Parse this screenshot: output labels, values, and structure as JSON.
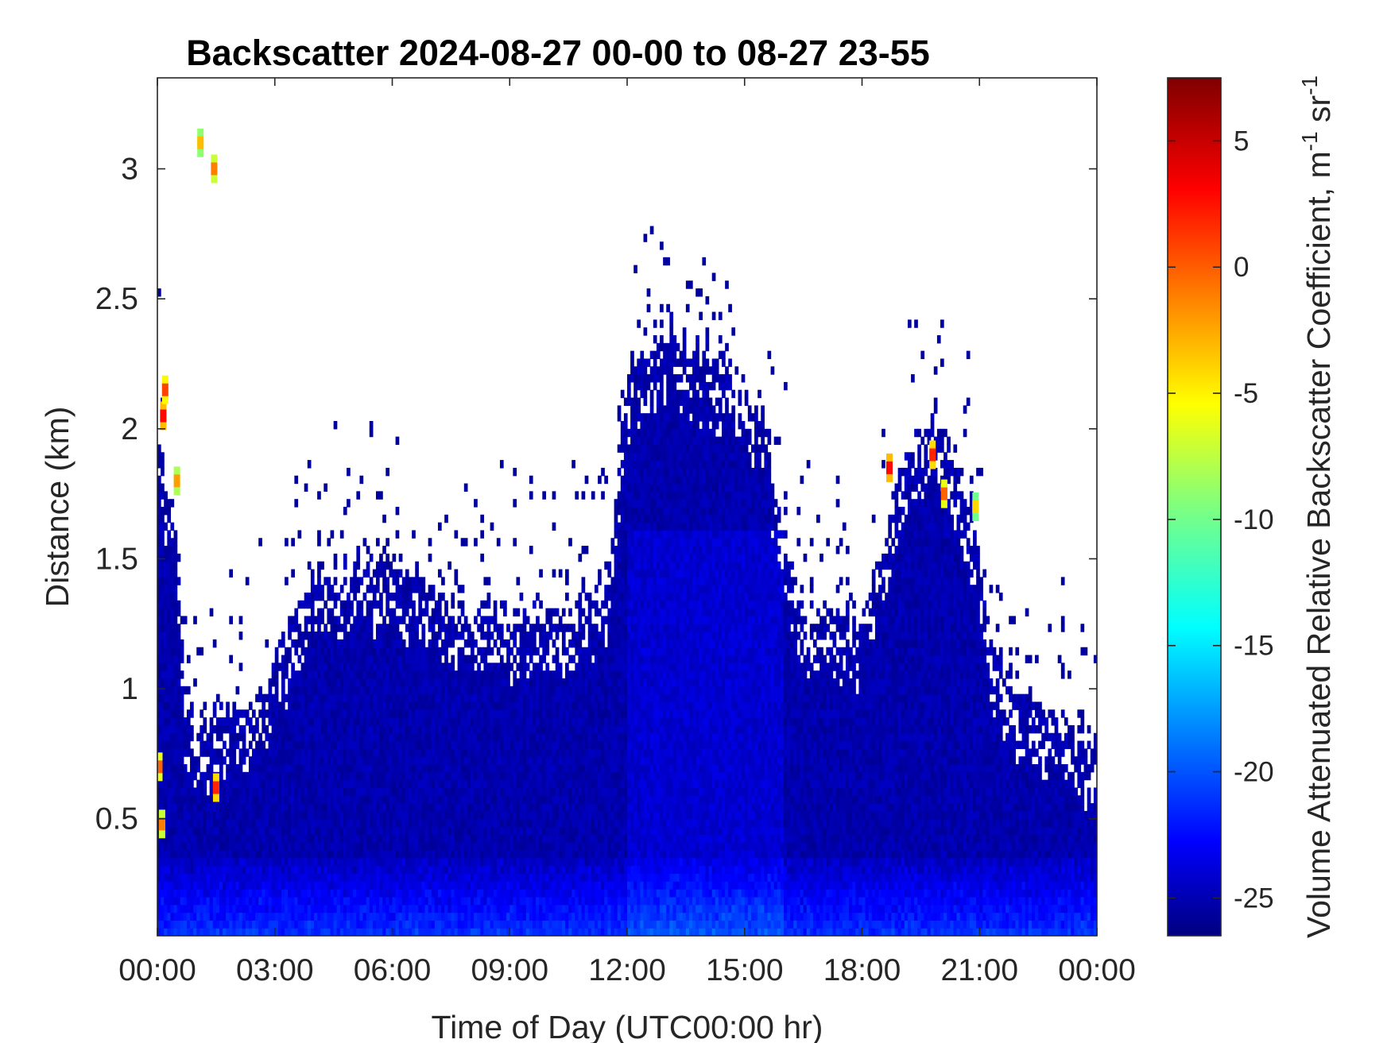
{
  "chart_data": {
    "type": "heatmap",
    "title": "Backscatter 2024-08-27 00-00 to 08-27 23-55",
    "xlabel": "Time of Day (UTC00:00 hr)",
    "ylabel": "Distance (km)",
    "x_range_hours": [
      0,
      24
    ],
    "y_range_km": [
      0.05,
      3.35
    ],
    "x_ticks": [
      "00:00",
      "03:00",
      "06:00",
      "09:00",
      "12:00",
      "15:00",
      "18:00",
      "21:00",
      "00:00"
    ],
    "y_ticks": [
      "0.5",
      "1",
      "1.5",
      "2",
      "2.5",
      "3"
    ],
    "y_tick_values": [
      0.5,
      1,
      1.5,
      2,
      2.5,
      3
    ],
    "colorbar": {
      "label": "Volume Attenuated Relative Backscatter Coefficient, m",
      "label_units_sup1": "-1",
      "label_units_mid": " sr",
      "label_units_sup2": "-1",
      "range": [
        -26.5,
        7.5
      ],
      "ticks": [
        "5",
        "0",
        "-5",
        "-10",
        "-15",
        "-20",
        "-25"
      ],
      "tick_values": [
        5,
        0,
        -5,
        -10,
        -15,
        -20,
        -25
      ],
      "colormap": "jet"
    },
    "layer_top_profile_km": [
      [
        0.0,
        2.0
      ],
      [
        0.5,
        1.6
      ],
      [
        0.7,
        1.0
      ],
      [
        1.0,
        0.85
      ],
      [
        1.5,
        0.9
      ],
      [
        2.0,
        0.95
      ],
      [
        2.5,
        0.95
      ],
      [
        3.0,
        1.1
      ],
      [
        3.5,
        1.3
      ],
      [
        4.0,
        1.45
      ],
      [
        5.0,
        1.5
      ],
      [
        6.0,
        1.5
      ],
      [
        7.0,
        1.4
      ],
      [
        8.0,
        1.35
      ],
      [
        9.0,
        1.3
      ],
      [
        10.0,
        1.3
      ],
      [
        11.0,
        1.35
      ],
      [
        11.5,
        1.45
      ],
      [
        12.0,
        2.2
      ],
      [
        12.5,
        2.3
      ],
      [
        13.0,
        2.4
      ],
      [
        13.5,
        2.35
      ],
      [
        14.0,
        2.3
      ],
      [
        14.5,
        2.25
      ],
      [
        15.0,
        2.15
      ],
      [
        15.5,
        2.05
      ],
      [
        16.0,
        1.6
      ],
      [
        16.5,
        1.3
      ],
      [
        17.0,
        1.25
      ],
      [
        17.5,
        1.3
      ],
      [
        18.0,
        1.3
      ],
      [
        18.5,
        1.5
      ],
      [
        19.0,
        1.9
      ],
      [
        19.5,
        2.0
      ],
      [
        20.0,
        2.0
      ],
      [
        20.5,
        1.85
      ],
      [
        21.0,
        1.5
      ],
      [
        21.5,
        1.1
      ],
      [
        22.0,
        1.0
      ],
      [
        23.0,
        0.9
      ],
      [
        24.0,
        0.8
      ]
    ],
    "hotspots": [
      {
        "t": 0.15,
        "z": 2.05,
        "value": 3
      },
      {
        "t": 0.2,
        "z": 2.15,
        "value": 1
      },
      {
        "t": 0.5,
        "z": 1.8,
        "value": -2
      },
      {
        "t": 0.05,
        "z": 0.7,
        "value": 0
      },
      {
        "t": 0.12,
        "z": 0.48,
        "value": -1
      },
      {
        "t": 1.1,
        "z": 3.1,
        "value": -3
      },
      {
        "t": 1.45,
        "z": 3.0,
        "value": -1
      },
      {
        "t": 1.5,
        "z": 0.62,
        "value": 2
      },
      {
        "t": 18.7,
        "z": 1.85,
        "value": 3
      },
      {
        "t": 19.8,
        "z": 1.9,
        "value": 2
      },
      {
        "t": 20.1,
        "z": 1.75,
        "value": 0
      },
      {
        "t": 20.9,
        "z": 1.7,
        "value": -4
      }
    ]
  }
}
